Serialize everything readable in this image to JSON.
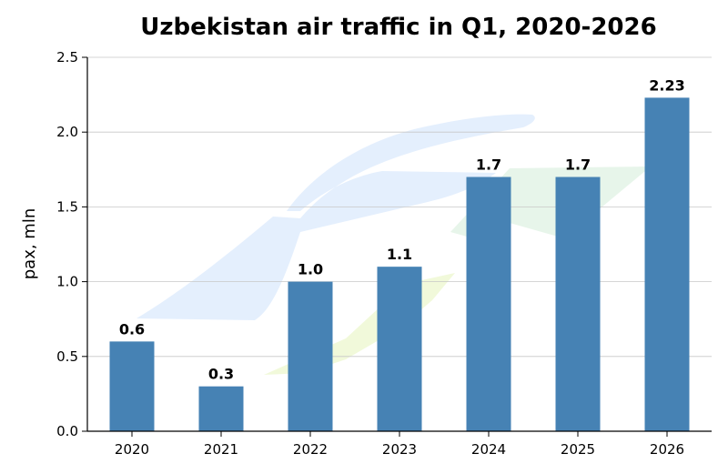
{
  "chart_data": {
    "type": "bar",
    "title": "Uzbekistan air traffic in Q1, 2020-2026",
    "xlabel": "",
    "ylabel": "pax, mln",
    "categories": [
      "2020",
      "2021",
      "2022",
      "2023",
      "2024",
      "2025",
      "2026"
    ],
    "values": [
      0.6,
      0.3,
      1.0,
      1.1,
      1.7,
      1.7,
      2.23
    ],
    "data_labels": [
      "0.6",
      "0.3",
      "1.0",
      "1.1",
      "1.7",
      "1.7",
      "2.23"
    ],
    "ylim": [
      0,
      2.5
    ],
    "yticks": [
      "0.0",
      "0.5",
      "1.0",
      "1.5",
      "2.0",
      "2.5"
    ],
    "grid": "horizontal",
    "bar_color": "#4682b4",
    "watermark_colors": [
      "#dbeafc",
      "#eff8d4",
      "#e3f3e6"
    ]
  }
}
